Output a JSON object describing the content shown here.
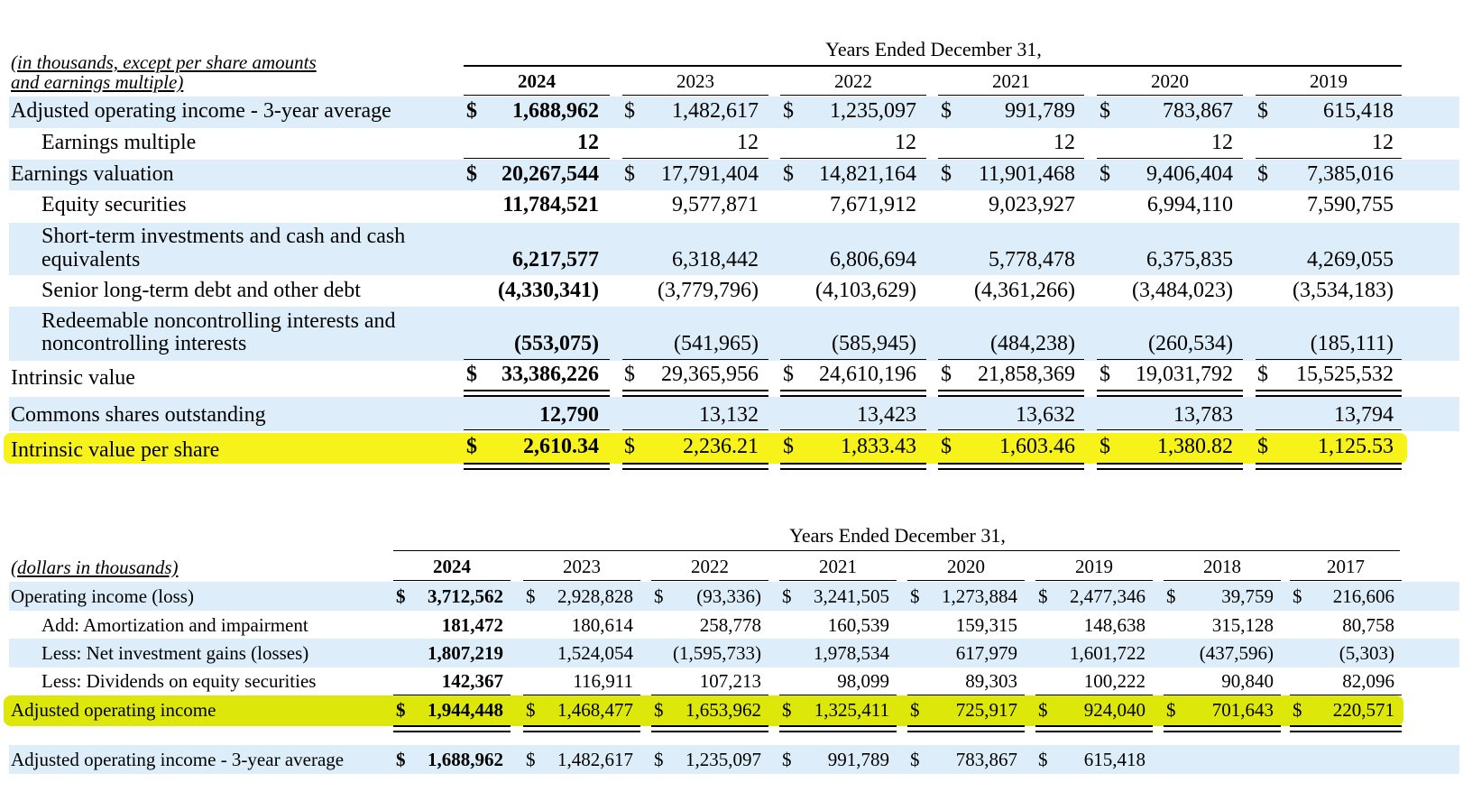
{
  "table1": {
    "note_line1": "(in thousands, except per share amounts",
    "note_line2": "and earnings multiple)",
    "title": "Years Ended December 31,",
    "years": [
      "2024",
      "2023",
      "2022",
      "2021",
      "2020",
      "2019"
    ],
    "currency": "$",
    "rows": [
      {
        "label": "Adjusted operating income - 3-year average",
        "values": [
          "1,688,962",
          "1,482,617",
          "1,235,097",
          "991,789",
          "783,867",
          "615,418"
        ]
      },
      {
        "label": "Earnings multiple",
        "values": [
          "12",
          "12",
          "12",
          "12",
          "12",
          "12"
        ]
      },
      {
        "label": "Earnings valuation",
        "values": [
          "20,267,544",
          "17,791,404",
          "14,821,164",
          "11,901,468",
          "9,406,404",
          "7,385,016"
        ]
      },
      {
        "label": "Equity securities",
        "values": [
          "11,784,521",
          "9,577,871",
          "7,671,912",
          "9,023,927",
          "6,994,110",
          "7,590,755"
        ]
      },
      {
        "label_line1": "Short-term investments and cash and cash",
        "label_line2": "equivalents",
        "values": [
          "6,217,577",
          "6,318,442",
          "6,806,694",
          "5,778,478",
          "6,375,835",
          "4,269,055"
        ]
      },
      {
        "label": "Senior long-term debt and other debt",
        "values": [
          "(4,330,341)",
          "(3,779,796)",
          "(4,103,629)",
          "(4,361,266)",
          "(3,484,023)",
          "(3,534,183)"
        ]
      },
      {
        "label_line1": "Redeemable noncontrolling interests and",
        "label_line2": "noncontrolling interests",
        "values": [
          "(553,075)",
          "(541,965)",
          "(585,945)",
          "(484,238)",
          "(260,534)",
          "(185,111)"
        ]
      },
      {
        "label": "Intrinsic value",
        "values": [
          "33,386,226",
          "29,365,956",
          "24,610,196",
          "21,858,369",
          "19,031,792",
          "15,525,532"
        ]
      },
      {
        "label": "Commons shares outstanding",
        "values": [
          "12,790",
          "13,132",
          "13,423",
          "13,632",
          "13,783",
          "13,794"
        ]
      },
      {
        "label": "Intrinsic value per share",
        "values": [
          "2,610.34",
          "2,236.21",
          "1,833.43",
          "1,603.46",
          "1,380.82",
          "1,125.53"
        ]
      }
    ],
    "highlight_color": "#f7f21a",
    "band_color": "#ddeefa"
  },
  "table2": {
    "note": "(dollars in thousands)",
    "title": "Years Ended December 31,",
    "years": [
      "2024",
      "2023",
      "2022",
      "2021",
      "2020",
      "2019",
      "2018",
      "2017"
    ],
    "currency": "$",
    "rows": [
      {
        "label": "Operating income (loss)",
        "values": [
          "3,712,562",
          "2,928,828",
          "(93,336)",
          "3,241,505",
          "1,273,884",
          "2,477,346",
          "39,759",
          "216,606"
        ]
      },
      {
        "label": "Add: Amortization and impairment",
        "values": [
          "181,472",
          "180,614",
          "258,778",
          "160,539",
          "159,315",
          "148,638",
          "315,128",
          "80,758"
        ]
      },
      {
        "label": "Less: Net investment gains (losses)",
        "values": [
          "1,807,219",
          "1,524,054",
          "(1,595,733)",
          "1,978,534",
          "617,979",
          "1,601,722",
          "(437,596)",
          "(5,303)"
        ]
      },
      {
        "label": "Less: Dividends on equity securities",
        "values": [
          "142,367",
          "116,911",
          "107,213",
          "98,099",
          "89,303",
          "100,222",
          "90,840",
          "82,096"
        ]
      },
      {
        "label": "Adjusted operating income",
        "values": [
          "1,944,448",
          "1,468,477",
          "1,653,962",
          "1,325,411",
          "725,917",
          "924,040",
          "701,643",
          "220,571"
        ]
      },
      {
        "label": "Adjusted operating income - 3-year average",
        "values": [
          "1,688,962",
          "1,482,617",
          "1,235,097",
          "991,789",
          "783,867",
          "615,418"
        ]
      }
    ],
    "highlight_color": "#dde80a"
  }
}
